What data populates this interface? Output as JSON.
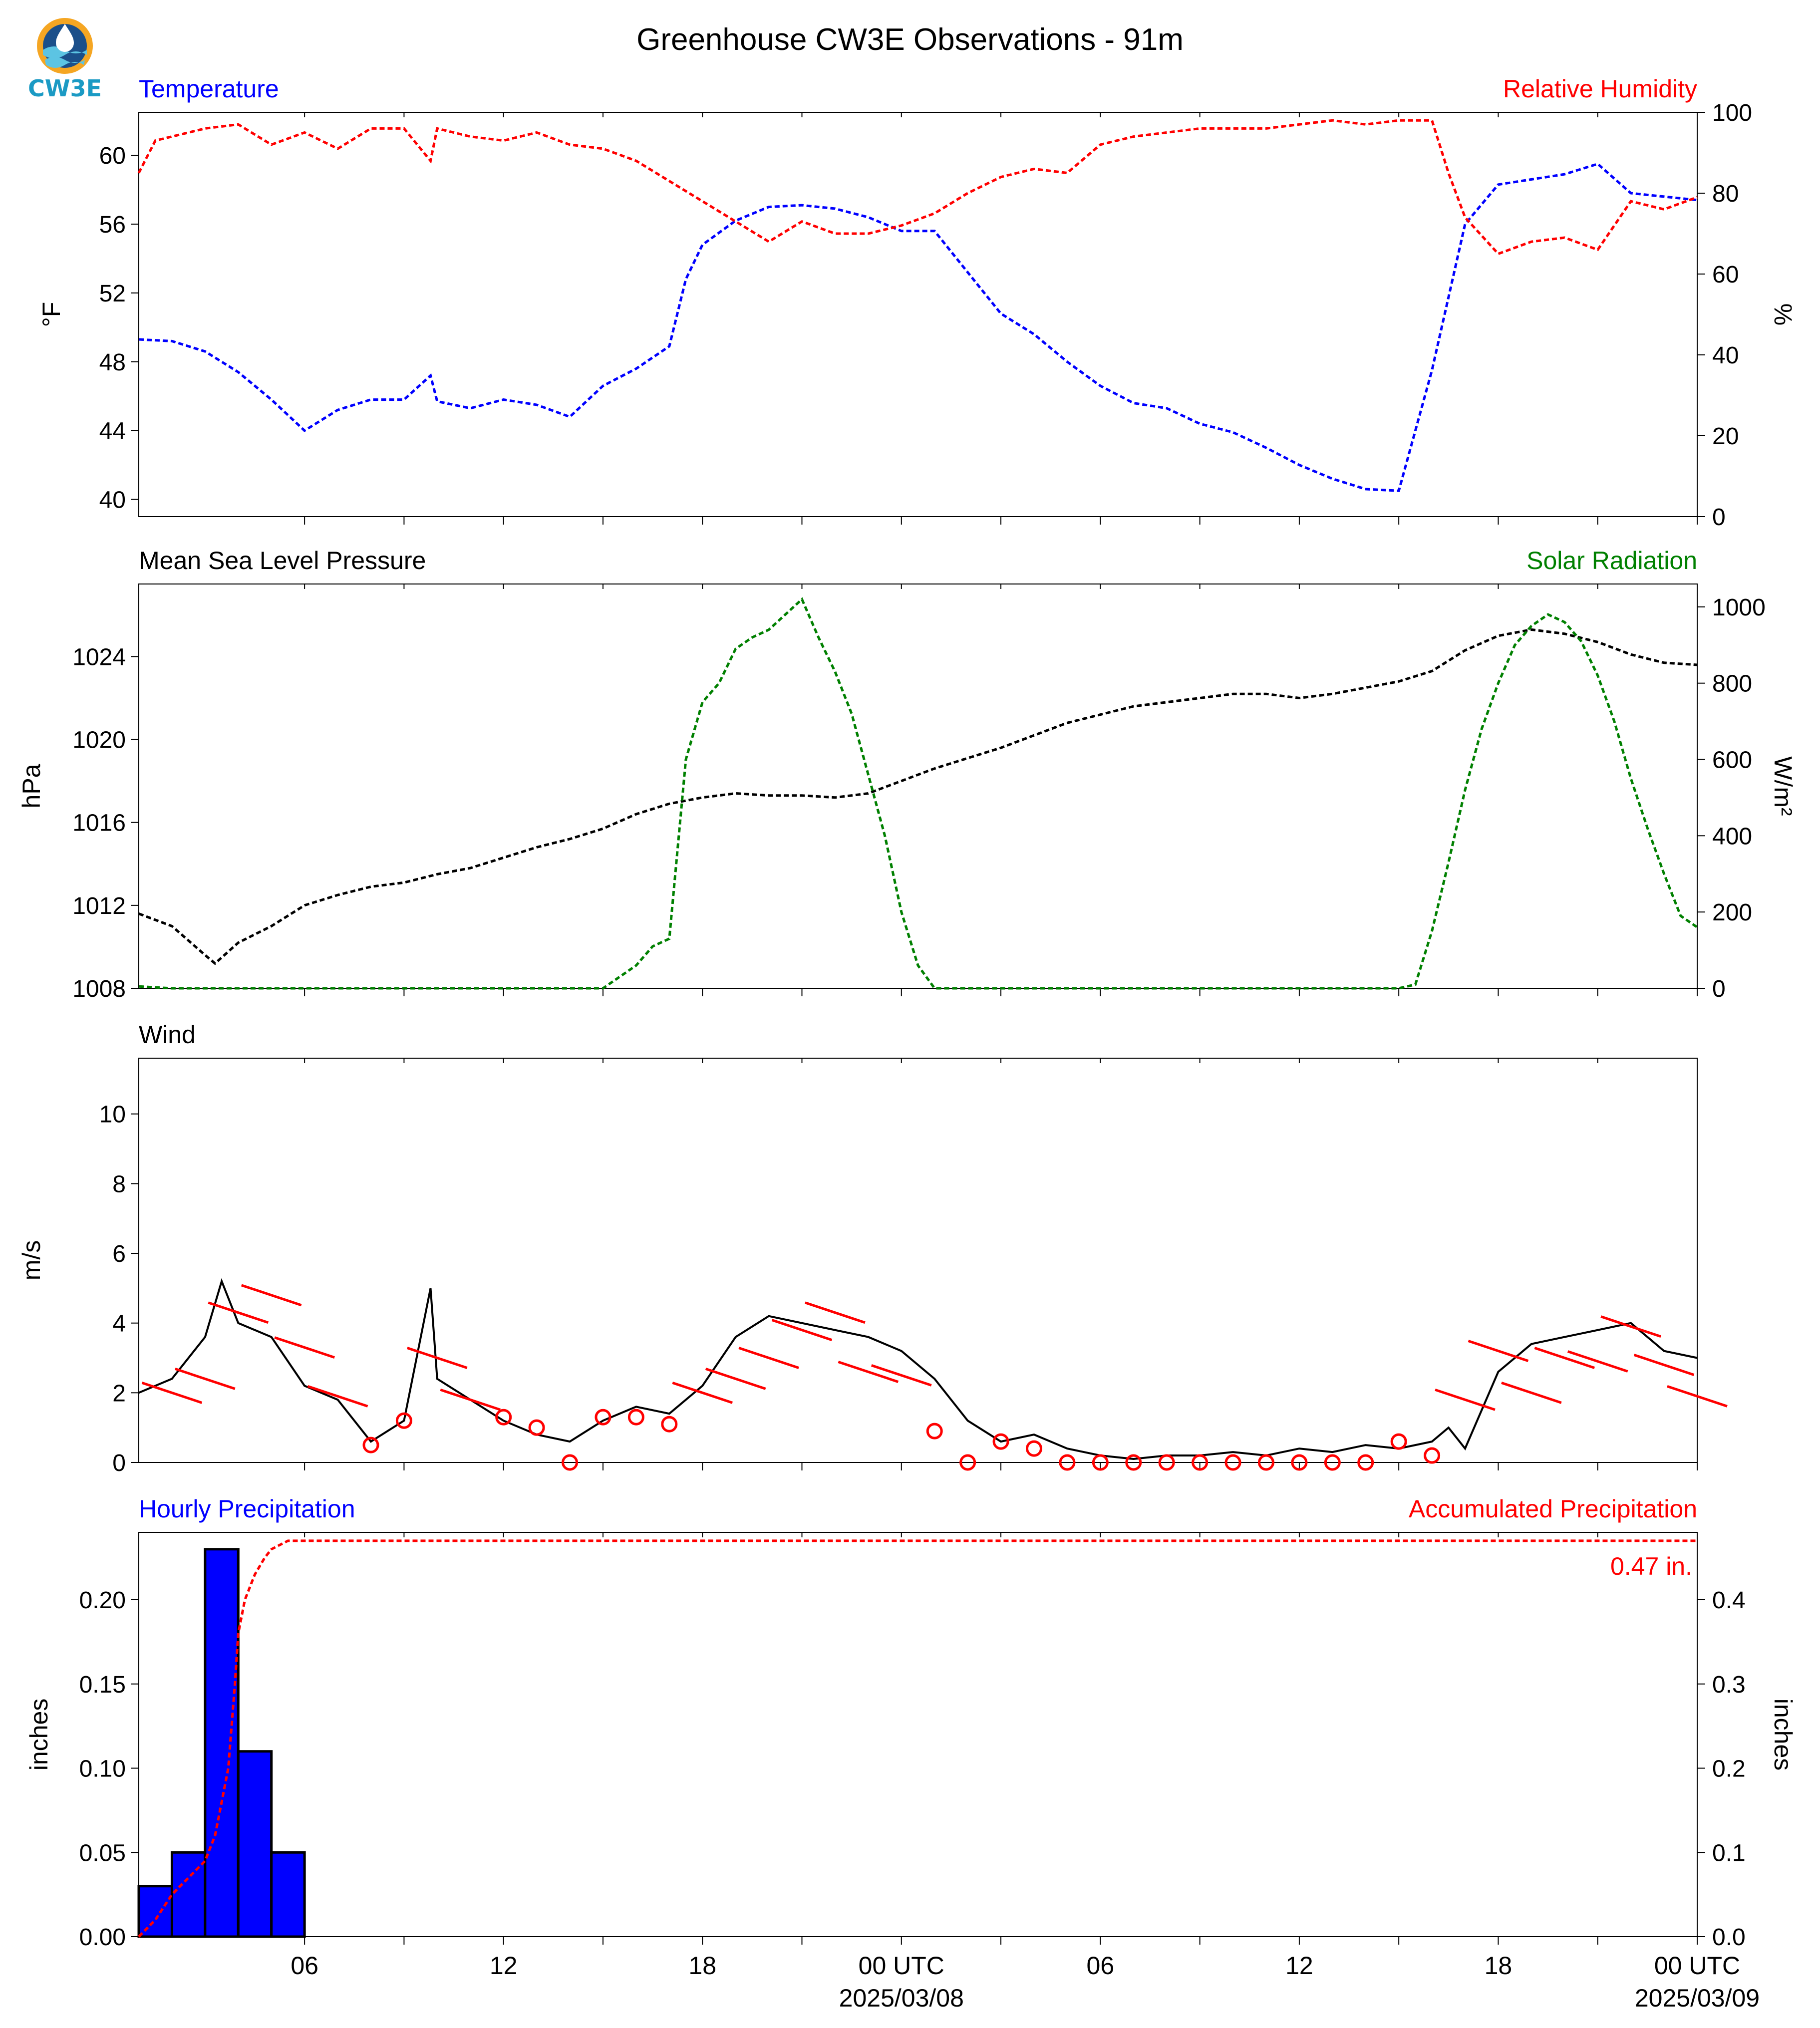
{
  "figure_title": "Greenhouse CW3E Observations - 91m",
  "logo": {
    "text": "CW3E",
    "colors": {
      "orange": "#f5a623",
      "teal": "#1f8fb0",
      "navy": "#1b4f8a"
    }
  },
  "colors": {
    "temperature": "#0000ff",
    "humidity": "#ff0000",
    "pressure": "#000000",
    "solar": "#008000",
    "wind": "#000000",
    "wind_barb": "#ff0000",
    "precip_bar": "#0000ff",
    "precip_accum": "#ff0000"
  },
  "x_axis": {
    "ticks": [
      "",
      "06",
      "",
      "12",
      "",
      "18",
      "",
      "00 UTC",
      "",
      "06",
      "",
      "12",
      "",
      "18",
      "",
      "00 UTC"
    ],
    "tick_hours": [
      0,
      6,
      9,
      12,
      15,
      18,
      21,
      24,
      27,
      30,
      33,
      36,
      39,
      42,
      45,
      48
    ],
    "date_labels": [
      {
        "hour": 24,
        "text": "2025/03/08"
      },
      {
        "hour": 48,
        "text": "2025/03/09"
      }
    ],
    "range_hours": [
      1,
      48
    ]
  },
  "chart_data": [
    {
      "type": "line",
      "panel": "temperature_humidity",
      "left_title": "Temperature",
      "right_title": "Relative Humidity",
      "ylabel_left": "°F",
      "ylabel_right": "%",
      "ylim_left": [
        39,
        62.5
      ],
      "ylim_right": [
        0,
        100
      ],
      "yticks_left": [
        40,
        44,
        48,
        52,
        56,
        60
      ],
      "yticks_right": [
        0,
        20,
        40,
        60,
        80,
        100
      ],
      "series": [
        {
          "name": "Temperature",
          "axis": "left",
          "x": [
            1,
            2,
            3,
            4,
            5,
            6,
            7,
            8,
            9,
            9.8,
            10,
            11,
            12,
            13,
            14,
            15,
            16,
            17,
            17.5,
            18,
            19,
            20,
            21,
            22,
            23,
            24,
            25,
            26,
            27,
            28,
            29,
            30,
            31,
            32,
            33,
            34,
            35,
            36,
            37,
            38,
            39,
            40,
            41,
            42,
            43,
            44,
            45,
            46,
            47,
            48
          ],
          "y": [
            49.3,
            49.2,
            48.6,
            47.4,
            45.8,
            44.0,
            45.2,
            45.8,
            45.8,
            47.2,
            45.7,
            45.3,
            45.8,
            45.5,
            44.8,
            46.6,
            47.6,
            48.9,
            52.8,
            54.8,
            56.2,
            57.0,
            57.1,
            56.9,
            56.4,
            55.6,
            55.6,
            53.2,
            50.8,
            49.6,
            48.0,
            46.6,
            45.6,
            45.3,
            44.4,
            43.9,
            43.0,
            42.0,
            41.2,
            40.6,
            40.5,
            47.5,
            56.0,
            58.3,
            58.6,
            58.9,
            59.5,
            57.8,
            57.6,
            57.4
          ]
        },
        {
          "name": "Relative Humidity",
          "axis": "right",
          "x": [
            1,
            1.5,
            2,
            3,
            4,
            5,
            6,
            7,
            8,
            9,
            9.8,
            10,
            11,
            12,
            13,
            14,
            15,
            16,
            17,
            18,
            19,
            20,
            21,
            22,
            23,
            24,
            25,
            26,
            27,
            28,
            29,
            30,
            31,
            32,
            33,
            34,
            35,
            36,
            37,
            38,
            39,
            40,
            40.5,
            41,
            42,
            43,
            44,
            45,
            46,
            47,
            48
          ],
          "y": [
            85,
            93,
            94,
            96,
            97,
            92,
            95,
            91,
            96,
            96,
            88,
            96,
            94,
            93,
            95,
            92,
            91,
            88,
            83,
            78,
            73,
            68,
            73,
            70,
            70,
            72,
            75,
            80,
            84,
            86,
            85,
            92,
            94,
            95,
            96,
            96,
            96,
            97,
            98,
            97,
            98,
            98,
            85,
            74,
            65,
            68,
            69,
            66,
            78,
            76,
            79
          ]
        }
      ]
    },
    {
      "type": "line",
      "panel": "pressure_solar",
      "left_title": "Mean Sea Level Pressure",
      "right_title": "Solar Radiation",
      "ylabel_left": "hPa",
      "ylabel_right": "W/m²",
      "ylim_left": [
        1008,
        1027.5
      ],
      "ylim_right": [
        0,
        1060
      ],
      "yticks_left": [
        1008,
        1012,
        1016,
        1020,
        1024
      ],
      "yticks_right": [
        0,
        200,
        400,
        600,
        800,
        1000
      ],
      "series": [
        {
          "name": "Mean Sea Level Pressure",
          "axis": "left",
          "x": [
            1,
            2,
            3,
            3.3,
            4,
            5,
            6,
            7,
            8,
            9,
            10,
            11,
            12,
            13,
            14,
            15,
            16,
            17,
            18,
            19,
            20,
            21,
            22,
            23,
            24,
            25,
            26,
            27,
            28,
            29,
            30,
            31,
            32,
            33,
            34,
            35,
            36,
            37,
            38,
            39,
            40,
            41,
            42,
            43,
            44,
            45,
            46,
            47,
            48
          ],
          "y": [
            1011.6,
            1011.0,
            1009.6,
            1009.2,
            1010.2,
            1011.0,
            1012.0,
            1012.5,
            1012.9,
            1013.1,
            1013.5,
            1013.8,
            1014.3,
            1014.8,
            1015.2,
            1015.7,
            1016.4,
            1016.9,
            1017.2,
            1017.4,
            1017.3,
            1017.3,
            1017.2,
            1017.4,
            1018.0,
            1018.6,
            1019.1,
            1019.6,
            1020.2,
            1020.8,
            1021.2,
            1021.6,
            1021.8,
            1022.0,
            1022.2,
            1022.2,
            1022.0,
            1022.2,
            1022.5,
            1022.8,
            1023.3,
            1024.3,
            1025.0,
            1025.3,
            1025.1,
            1024.7,
            1024.1,
            1023.7,
            1023.6
          ]
        },
        {
          "name": "Solar Radiation",
          "axis": "right",
          "x": [
            1,
            2,
            3,
            4,
            5,
            6,
            7,
            8,
            9,
            10,
            11,
            12,
            13,
            14,
            15,
            16,
            16.5,
            17,
            17.5,
            18,
            18.5,
            19,
            19.5,
            20,
            20.5,
            21,
            21.5,
            22,
            22.5,
            23,
            23.5,
            24,
            24.5,
            25,
            26,
            27,
            28,
            29,
            30,
            31,
            32,
            33,
            34,
            35,
            36,
            37,
            38,
            39,
            39.5,
            40,
            40.5,
            41,
            41.5,
            42,
            42.5,
            43,
            43.5,
            44,
            44.5,
            45,
            45.5,
            46,
            46.5,
            47,
            47.5,
            48
          ],
          "y": [
            5,
            0,
            0,
            0,
            0,
            0,
            0,
            0,
            0,
            0,
            0,
            0,
            0,
            0,
            0,
            60,
            110,
            130,
            600,
            750,
            800,
            890,
            920,
            940,
            980,
            1020,
            920,
            830,
            720,
            560,
            400,
            200,
            60,
            0,
            0,
            0,
            0,
            0,
            0,
            0,
            0,
            0,
            0,
            0,
            0,
            0,
            0,
            0,
            10,
            150,
            330,
            520,
            680,
            800,
            900,
            950,
            980,
            960,
            910,
            820,
            700,
            550,
            420,
            300,
            190,
            160
          ]
        }
      ]
    },
    {
      "type": "line",
      "panel": "wind",
      "left_title": "Wind",
      "ylabel_left": "m/s",
      "ylim_left": [
        0,
        11.6
      ],
      "yticks_left": [
        0,
        2,
        4,
        6,
        8,
        10
      ],
      "series": [
        {
          "name": "Wind",
          "axis": "left",
          "x": [
            1,
            2,
            3,
            3.5,
            4,
            5,
            6,
            7,
            8,
            9,
            9.8,
            10,
            11,
            12,
            13,
            14,
            15,
            16,
            17,
            18,
            19,
            20,
            21,
            22,
            23,
            24,
            25,
            26,
            27,
            28,
            29,
            30,
            31,
            32,
            33,
            34,
            35,
            36,
            37,
            38,
            39,
            40,
            40.5,
            41,
            42,
            43,
            44,
            45,
            46,
            47,
            48
          ],
          "y": [
            2.0,
            2.4,
            3.6,
            5.2,
            4.0,
            3.6,
            2.2,
            1.8,
            0.6,
            1.2,
            5.0,
            2.4,
            1.8,
            1.2,
            0.8,
            0.6,
            1.2,
            1.6,
            1.4,
            2.2,
            3.6,
            4.2,
            4.0,
            3.8,
            3.6,
            3.2,
            2.4,
            1.2,
            0.6,
            0.8,
            0.4,
            0.2,
            0.1,
            0.2,
            0.2,
            0.3,
            0.2,
            0.4,
            0.3,
            0.5,
            0.4,
            0.6,
            1.0,
            0.4,
            2.6,
            3.4,
            3.6,
            3.8,
            4.0,
            3.2,
            3.0
          ]
        },
        {
          "name": "Wind barbs",
          "axis": "left",
          "x": [
            2,
            3,
            4,
            5,
            6,
            7,
            8,
            9,
            10,
            11,
            12,
            13,
            14,
            15,
            16,
            17,
            18,
            19,
            20,
            21,
            22,
            23,
            24,
            25,
            26,
            27,
            28,
            29,
            30,
            31,
            32,
            33,
            34,
            35,
            36,
            37,
            38,
            39,
            40,
            41,
            42,
            43,
            44,
            45,
            46,
            47,
            48
          ],
          "y": [
            2.0,
            2.4,
            4.3,
            4.8,
            3.3,
            1.9,
            0.5,
            1.2,
            3.0,
            1.8,
            1.3,
            1.0,
            0.0,
            1.3,
            1.3,
            1.1,
            2.0,
            2.4,
            3.0,
            3.8,
            4.3,
            2.6,
            2.5,
            0.9,
            0.0,
            0.6,
            0.4,
            0.0,
            0.0,
            0.0,
            0.0,
            0.0,
            0.0,
            0.0,
            0.0,
            0.0,
            0.0,
            0.6,
            0.2,
            1.8,
            3.2,
            2.0,
            3.0,
            2.9,
            3.9,
            2.8,
            1.9
          ]
        }
      ]
    },
    {
      "type": "bar",
      "panel": "precipitation",
      "left_title": "Hourly Precipitation",
      "right_title": "Accumulated Precipitation",
      "ylabel_left": "inches",
      "ylabel_right": "inches",
      "ylim_left": [
        0,
        0.24
      ],
      "ylim_right": [
        0,
        0.48
      ],
      "yticks_left": [
        0.0,
        0.05,
        0.1,
        0.15,
        0.2
      ],
      "yticks_right": [
        0.0,
        0.1,
        0.2,
        0.3,
        0.4
      ],
      "annotation": "0.47 in.",
      "series": [
        {
          "name": "Hourly Precipitation",
          "axis": "left",
          "x": [
            1,
            2,
            3,
            4,
            5
          ],
          "values": [
            0.03,
            0.05,
            0.23,
            0.11,
            0.05
          ]
        },
        {
          "name": "Accumulated Precipitation",
          "axis": "right",
          "x": [
            1,
            1.5,
            2,
            2.5,
            3,
            3.3,
            3.5,
            3.7,
            3.9,
            4.0,
            4.2,
            4.5,
            4.8,
            5.0,
            5.5,
            6,
            48
          ],
          "y": [
            0.0,
            0.02,
            0.05,
            0.07,
            0.09,
            0.12,
            0.16,
            0.2,
            0.3,
            0.36,
            0.4,
            0.43,
            0.45,
            0.46,
            0.47,
            0.47,
            0.47
          ]
        }
      ]
    }
  ]
}
